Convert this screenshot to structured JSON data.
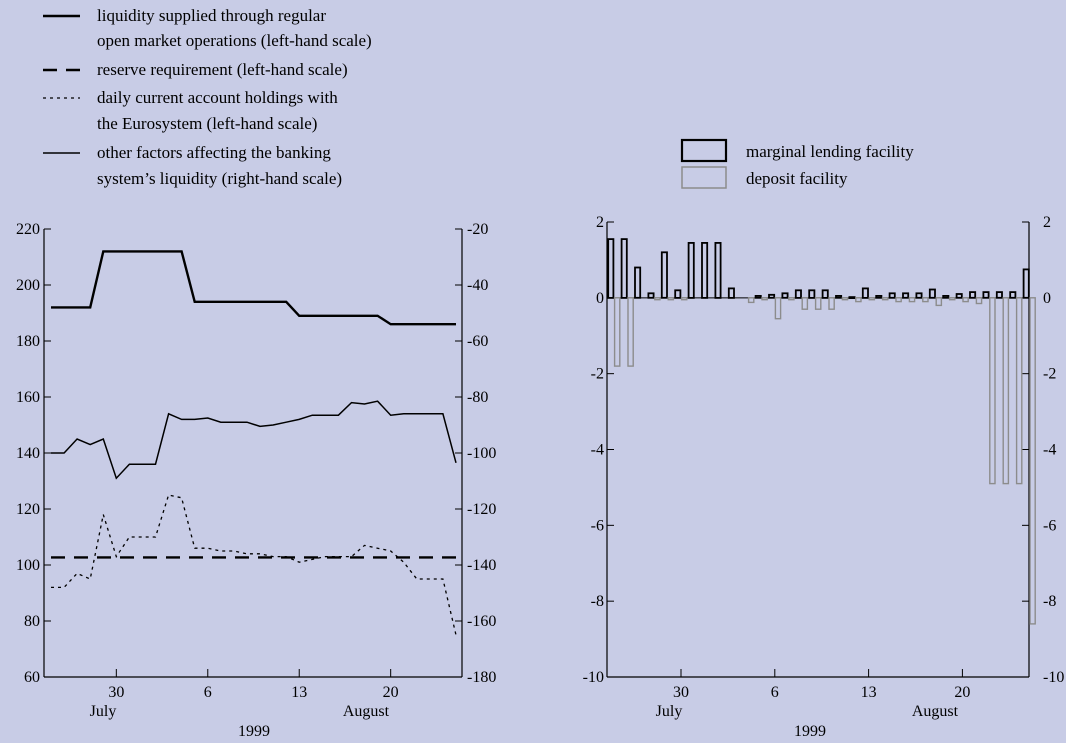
{
  "chart_data": [
    {
      "type": "line",
      "x_ticks": [
        "30",
        "6",
        "13",
        "20"
      ],
      "months": [
        "July",
        "August"
      ],
      "year": "1999",
      "ylim_left": [
        60,
        220
      ],
      "yticks_left": [
        "220",
        "200",
        "180",
        "160",
        "140",
        "120",
        "100",
        "80",
        "60"
      ],
      "ylim_right": [
        -180,
        -20
      ],
      "yticks_right": [
        "-20",
        "-40",
        "-60",
        "-80",
        "-100",
        "-120",
        "-140",
        "-160",
        "-180"
      ],
      "series": [
        {
          "name": "liquidity supplied through regular open market operations (left-hand scale)",
          "legend_lines": [
            "liquidity supplied through regular",
            "open market operations (left-hand scale)"
          ],
          "axis": "left",
          "style": "thick",
          "values": [
            192,
            192,
            192,
            192,
            212,
            212,
            212,
            212,
            212,
            212,
            212,
            194,
            194,
            194,
            194,
            194,
            194,
            194,
            194,
            189,
            189,
            189,
            189,
            189,
            189,
            189,
            186,
            186,
            186,
            186,
            186,
            186
          ]
        },
        {
          "name": "reserve requirement (left-hand scale)",
          "legend_lines": [
            "reserve requirement (left-hand scale)"
          ],
          "axis": "left",
          "style": "dashed",
          "values": [
            102.7,
            102.7,
            102.7,
            102.7,
            102.7,
            102.7,
            102.7,
            102.7,
            102.7,
            102.7,
            102.7,
            102.7,
            102.7,
            102.7,
            102.7,
            102.7,
            102.7,
            102.7,
            102.7,
            102.7,
            102.7,
            102.7,
            102.7,
            102.7,
            102.7,
            102.7,
            102.7,
            102.7,
            102.7,
            102.7,
            102.7,
            102.7
          ]
        },
        {
          "name": "daily current account holdings with the Eurosystem (left-hand scale)",
          "legend_lines": [
            "daily current account holdings with",
            "the Eurosystem (left-hand scale)"
          ],
          "axis": "left",
          "style": "dotted",
          "values": [
            92,
            92,
            97,
            95,
            118,
            103,
            110,
            110,
            110,
            125,
            124,
            106,
            106,
            105,
            105,
            104,
            104,
            103,
            103,
            101,
            102,
            103,
            103,
            103,
            107,
            106,
            105,
            101,
            95,
            95,
            95,
            75
          ]
        },
        {
          "name": "other factors affecting the banking system's liquidity (right-hand scale)",
          "legend_lines": [
            "other factors affecting the banking",
            "system’s liquidity (right-hand scale)"
          ],
          "axis": "right",
          "style": "thin",
          "values": [
            -100,
            -100,
            -95,
            -97,
            -95,
            -109,
            -104,
            -104,
            -104,
            -86,
            -88,
            -88,
            -87.5,
            -89,
            -89,
            -89,
            -90.5,
            -90,
            -89,
            -88,
            -86.5,
            -86.5,
            -86.5,
            -82,
            -82.5,
            -81.5,
            -86.5,
            -86,
            -86,
            -86,
            -86,
            -103.5
          ]
        }
      ]
    },
    {
      "type": "bar",
      "x_ticks": [
        "30",
        "6",
        "13",
        "20"
      ],
      "months": [
        "July",
        "August"
      ],
      "year": "1999",
      "ylim": [
        -10,
        2
      ],
      "yticks": [
        "2",
        "0",
        "-2",
        "-4",
        "-6",
        "-8",
        "-10"
      ],
      "series": [
        {
          "name": "marginal lending facility",
          "values": [
            1.55,
            1.55,
            0.8,
            0.12,
            1.2,
            0.2,
            1.45,
            1.45,
            1.45,
            0.25,
            0,
            0.05,
            0.08,
            0.12,
            0.2,
            0.2,
            0.2,
            0.05,
            0.02,
            0.25,
            0.05,
            0.12,
            0.12,
            0.12,
            0.22,
            0.05,
            0.1,
            0.15,
            0.15,
            0.15,
            0.15,
            0.75
          ]
        },
        {
          "name": "deposit facility",
          "values": [
            -1.8,
            -1.8,
            0,
            -0.05,
            -0.05,
            -0.05,
            0,
            0,
            0,
            0,
            -0.12,
            -0.05,
            -0.55,
            -0.05,
            -0.3,
            -0.3,
            -0.3,
            -0.05,
            -0.1,
            -0.05,
            -0.05,
            -0.1,
            -0.1,
            -0.1,
            -0.2,
            -0.05,
            -0.1,
            -0.15,
            -4.9,
            -4.9,
            -4.9,
            -8.6
          ]
        }
      ]
    }
  ]
}
